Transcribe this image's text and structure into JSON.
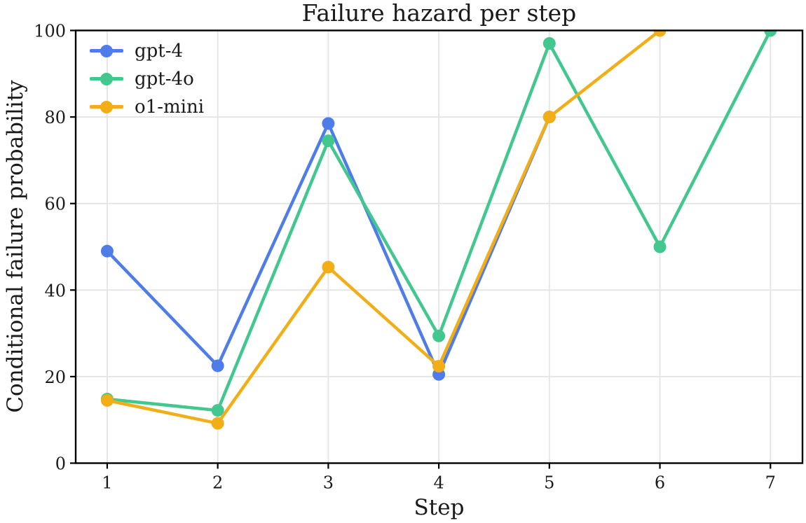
{
  "chart_data": {
    "type": "line",
    "title": "Failure hazard per step",
    "xlabel": "Step",
    "ylabel": "Conditional failure probability",
    "x_ticks": [
      1,
      2,
      3,
      4,
      5,
      6,
      7
    ],
    "y_ticks": [
      0,
      20,
      40,
      60,
      80,
      100
    ],
    "xlim": [
      0.715,
      7.29
    ],
    "ylim": [
      0,
      100
    ],
    "grid": true,
    "legend": {
      "position": "upper-left",
      "frame": false
    },
    "series": [
      {
        "name": "gpt-4",
        "color": "#4e7de9",
        "x": [
          1,
          2,
          3,
          4,
          5
        ],
        "values": [
          49,
          22.5,
          78.5,
          20.5,
          80
        ]
      },
      {
        "name": "gpt-4o",
        "color": "#42c78f",
        "x": [
          1,
          2,
          3,
          4,
          5,
          6,
          7
        ],
        "values": [
          14.8,
          12.2,
          74.5,
          29.4,
          97,
          50,
          100
        ]
      },
      {
        "name": "o1-mini",
        "color": "#f2ae17",
        "x": [
          1,
          2,
          3,
          4,
          5,
          6
        ],
        "values": [
          14.5,
          9.2,
          45.3,
          22.4,
          80,
          100
        ]
      }
    ]
  },
  "colors": {
    "background": "#ffffff",
    "spine": "#000000",
    "grid": "#e4e4e4",
    "text": "#1a1a1a"
  }
}
